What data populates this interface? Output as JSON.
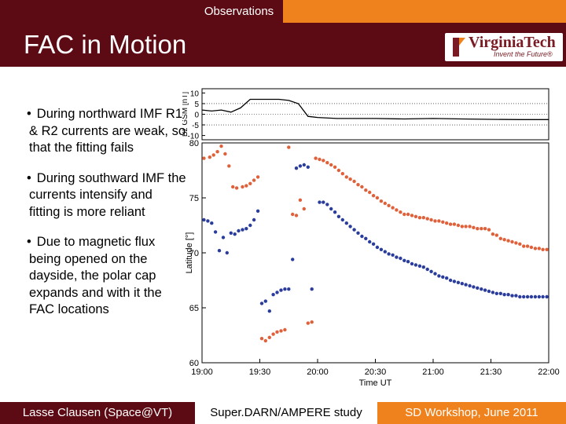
{
  "tab_label": "Observations",
  "title": "FAC in Motion",
  "logo": {
    "name": "VirginiaTech",
    "tagline": "Invent the Future®"
  },
  "bullets": [
    "During northward IMF R1  & R2 currents are weak, so that the fitting fails",
    "During southward IMF the currents intensify and fitting is more reliant",
    "Due to magnetic flux being opened on the dayside, the polar cap expands and with it the FAC locations"
  ],
  "footer": {
    "left": "Lasse Clausen (Space@VT)",
    "center": "Super.DARN/AMPERE study",
    "right": "SD Workshop, June 2011"
  },
  "colors": {
    "maroon": "#5c0a13",
    "orange": "#f0821e",
    "r1_series": "#e0603a",
    "r2_series": "#2a3c9c"
  },
  "chart_data": [
    {
      "type": "line",
      "ylabel": "Bz GSM [nT]",
      "ylim": [
        -12,
        12
      ],
      "yticks": [
        "10",
        "5",
        "0",
        "-5",
        "-10"
      ],
      "x": [
        "19:00",
        "19:05",
        "19:10",
        "19:15",
        "19:20",
        "19:25",
        "19:30",
        "19:35",
        "19:40",
        "19:45",
        "19:50",
        "19:55",
        "20:00",
        "20:10",
        "20:20",
        "20:30",
        "20:45",
        "21:00",
        "21:15",
        "21:30",
        "21:45",
        "22:00"
      ],
      "series": [
        {
          "values": [
            2,
            1.5,
            2,
            1,
            3,
            7,
            7,
            7,
            7,
            6.5,
            5,
            -1,
            -1.5,
            -2,
            -2,
            -2,
            -2.2,
            -2,
            -2.2,
            -2.4,
            -2.5,
            -2.5
          ]
        }
      ],
      "grid": true
    },
    {
      "type": "scatter",
      "xlabel": "Time UT",
      "ylabel": "Latitude  [°]",
      "xticks": [
        "19:00",
        "19:30",
        "20:00",
        "20:30",
        "21:00",
        "21:30",
        "22:00"
      ],
      "yticks": [
        "80",
        "75",
        "70",
        "65",
        "60"
      ],
      "xlim": [
        "19:00",
        "22:00"
      ],
      "ylim": [
        60,
        80
      ],
      "series": [
        {
          "color": "#e0603a",
          "x": [
            "19:01",
            "19:04",
            "19:06",
            "19:08",
            "19:10",
            "19:12",
            "19:14",
            "19:16",
            "19:18",
            "19:21",
            "19:23",
            "19:25",
            "19:27",
            "19:29",
            "19:31",
            "19:33",
            "19:35",
            "19:37",
            "19:39",
            "19:41",
            "19:43",
            "19:45",
            "19:47",
            "19:49",
            "19:51",
            "19:53",
            "19:55",
            "19:57",
            "19:59",
            "20:01",
            "20:03",
            "20:05",
            "20:07",
            "20:09",
            "20:11",
            "20:13",
            "20:15",
            "20:17",
            "20:19",
            "20:21",
            "20:23",
            "20:25",
            "20:27",
            "20:29",
            "20:31",
            "20:33",
            "20:35",
            "20:37",
            "20:39",
            "20:41",
            "20:43",
            "20:45",
            "20:47",
            "20:49",
            "20:51",
            "20:53",
            "20:55",
            "20:57",
            "20:59",
            "21:01",
            "21:03",
            "21:05",
            "21:07",
            "21:09",
            "21:11",
            "21:13",
            "21:15",
            "21:17",
            "21:19",
            "21:21",
            "21:23",
            "21:25",
            "21:27",
            "21:29",
            "21:31",
            "21:33",
            "21:35",
            "21:37",
            "21:39",
            "21:41",
            "21:43",
            "21:45",
            "21:47",
            "21:49",
            "21:51",
            "21:53",
            "21:55",
            "21:57",
            "21:59"
          ],
          "values": [
            78.6,
            78.7,
            78.9,
            79.2,
            79.7,
            79.0,
            77.9,
            76.0,
            75.9,
            76.0,
            76.1,
            76.3,
            76.6,
            76.9,
            62.2,
            62.0,
            62.3,
            62.6,
            62.8,
            62.9,
            63.0,
            79.6,
            73.5,
            73.4,
            74.8,
            74.0,
            63.6,
            63.7,
            78.6,
            78.5,
            78.4,
            78.2,
            78.0,
            77.8,
            77.5,
            77.2,
            76.9,
            76.7,
            76.5,
            76.2,
            76.0,
            75.7,
            75.5,
            75.2,
            75.0,
            74.7,
            74.5,
            74.3,
            74.1,
            73.9,
            73.7,
            73.5,
            73.5,
            73.4,
            73.3,
            73.2,
            73.2,
            73.1,
            73.0,
            72.9,
            72.9,
            72.8,
            72.7,
            72.6,
            72.6,
            72.5,
            72.4,
            72.4,
            72.4,
            72.3,
            72.2,
            72.2,
            72.2,
            72.1,
            71.7,
            71.6,
            71.3,
            71.2,
            71.1,
            71.0,
            70.9,
            70.8,
            70.6,
            70.6,
            70.5,
            70.4,
            70.4,
            70.3,
            70.3
          ],
          "values_note": ""
        },
        {
          "color": "#2a3c9c",
          "x": [
            "19:01",
            "19:03",
            "19:05",
            "19:07",
            "19:09",
            "19:11",
            "19:13",
            "19:15",
            "19:17",
            "19:19",
            "19:21",
            "19:23",
            "19:25",
            "19:27",
            "19:29",
            "19:31",
            "19:33",
            "19:35",
            "19:37",
            "19:39",
            "19:41",
            "19:43",
            "19:45",
            "19:47",
            "19:49",
            "19:51",
            "19:53",
            "19:55",
            "19:57",
            "20:01",
            "20:03",
            "20:05",
            "20:07",
            "20:09",
            "20:11",
            "20:13",
            "20:15",
            "20:17",
            "20:19",
            "20:21",
            "20:23",
            "20:25",
            "20:27",
            "20:29",
            "20:31",
            "20:33",
            "20:35",
            "20:37",
            "20:39",
            "20:41",
            "20:43",
            "20:45",
            "20:47",
            "20:49",
            "20:51",
            "20:53",
            "20:55",
            "20:57",
            "20:59",
            "21:01",
            "21:03",
            "21:05",
            "21:07",
            "21:09",
            "21:11",
            "21:13",
            "21:15",
            "21:17",
            "21:19",
            "21:21",
            "21:23",
            "21:25",
            "21:27",
            "21:29",
            "21:31",
            "21:33",
            "21:35",
            "21:37",
            "21:39",
            "21:41",
            "21:43",
            "21:45",
            "21:47",
            "21:49",
            "21:51",
            "21:53",
            "21:55",
            "21:57",
            "21:59"
          ],
          "values": [
            73.0,
            72.9,
            72.7,
            71.9,
            70.2,
            71.4,
            70.0,
            71.8,
            71.7,
            72.0,
            72.1,
            72.2,
            72.5,
            73.0,
            73.8,
            65.4,
            65.6,
            64.7,
            66.2,
            66.4,
            66.6,
            66.7,
            66.7,
            69.4,
            77.7,
            77.9,
            78.0,
            77.8,
            66.7,
            74.6,
            74.6,
            74.4,
            74.0,
            73.7,
            73.3,
            73.0,
            72.7,
            72.4,
            72.1,
            71.8,
            71.5,
            71.3,
            71.0,
            70.8,
            70.5,
            70.3,
            70.1,
            69.9,
            69.8,
            69.6,
            69.5,
            69.3,
            69.2,
            69.0,
            68.9,
            68.8,
            68.7,
            68.5,
            68.3,
            68.1,
            67.9,
            67.8,
            67.7,
            67.5,
            67.4,
            67.3,
            67.2,
            67.1,
            67.0,
            66.9,
            66.8,
            66.7,
            66.6,
            66.5,
            66.4,
            66.3,
            66.3,
            66.2,
            66.2,
            66.1,
            66.1,
            66.0,
            66.0,
            66.0,
            66.0,
            66.0,
            66.0,
            66.0,
            66.0
          ],
          "values_note": ""
        }
      ]
    }
  ]
}
